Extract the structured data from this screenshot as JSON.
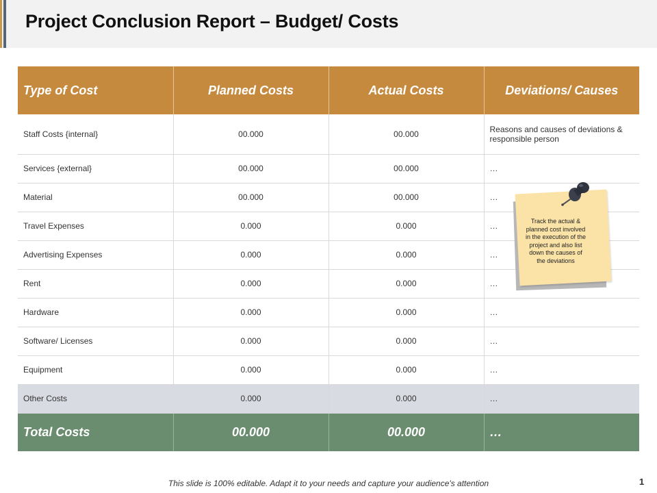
{
  "slide": {
    "title": "Project Conclusion Report – Budget/ Costs",
    "footer_note": "This slide is 100% editable. Adapt it to your needs and capture your audience's attention",
    "page_number": "1"
  },
  "table": {
    "headers": [
      "Type of Cost",
      "Planned Costs",
      "Actual Costs",
      "Deviations/ Causes"
    ],
    "rows": [
      {
        "type": "Staff Costs {internal}",
        "planned": "00.000",
        "actual": "00.000",
        "deviation": "Reasons and causes of deviations & responsible person"
      },
      {
        "type": "Services {external}",
        "planned": "00.000",
        "actual": "00.000",
        "deviation": "…"
      },
      {
        "type": "Material",
        "planned": "00.000",
        "actual": "00.000",
        "deviation": "…"
      },
      {
        "type": "Travel Expenses",
        "planned": "0.000",
        "actual": "0.000",
        "deviation": "…"
      },
      {
        "type": "Advertising Expenses",
        "planned": "0.000",
        "actual": "0.000",
        "deviation": "…"
      },
      {
        "type": "Rent",
        "planned": "0.000",
        "actual": "0.000",
        "deviation": "…"
      },
      {
        "type": "Hardware",
        "planned": "0.000",
        "actual": "0.000",
        "deviation": "…"
      },
      {
        "type": "Software/ Licenses",
        "planned": "0.000",
        "actual": "0.000",
        "deviation": "…"
      },
      {
        "type": "Equipment",
        "planned": "0.000",
        "actual": "0.000",
        "deviation": "…"
      },
      {
        "type": "Other Costs",
        "planned": "0.000",
        "actual": "0.000",
        "deviation": "…"
      }
    ],
    "total": {
      "label": "Total Costs",
      "planned": "00.000",
      "actual": "00.000",
      "deviation": "…"
    }
  },
  "sticky_note": {
    "text": "Track the actual & planned cost involved in the execution of the project and also list down the causes of the deviations",
    "icon": "pushpin-icon"
  },
  "colors": {
    "header": "#c68a3e",
    "total_row": "#6a8d6f",
    "other_row": "#d9dbe2",
    "sticky_note": "#fbe3a8"
  }
}
